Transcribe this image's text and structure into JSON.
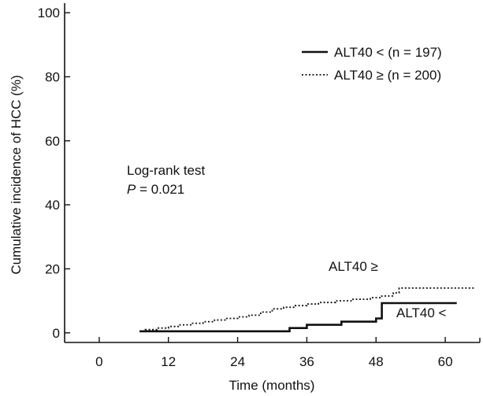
{
  "chart_data": {
    "type": "line",
    "step": true,
    "title": "",
    "xlabel": "Time (months)",
    "ylabel": "Cumulative incidence of HCC (%)",
    "xlim": [
      -6,
      66
    ],
    "ylim": [
      -3,
      103
    ],
    "xticks": [
      0,
      12,
      24,
      36,
      48,
      60
    ],
    "yticks": [
      0,
      20,
      40,
      60,
      80,
      100
    ],
    "x_tick_labels": [
      "0",
      "12",
      "24",
      "36",
      "48",
      "60"
    ],
    "y_tick_labels": [
      "0",
      "20",
      "40",
      "60",
      "80",
      "100"
    ],
    "grid": false,
    "legend_position": "top-right",
    "series": [
      {
        "name": "ALT40 < (n = 197)",
        "end_label": "ALT40 <",
        "style": "solid",
        "x": [
          7,
          32,
          33,
          35,
          36,
          41,
          42,
          47,
          48,
          49,
          62
        ],
        "y": [
          0.5,
          0.5,
          1.5,
          1.5,
          2.5,
          2.5,
          3.5,
          3.5,
          4.5,
          9.3,
          9.3
        ]
      },
      {
        "name": "ALT40 ≥ (n = 200)",
        "end_label": "ALT40 ≥",
        "style": "dotted",
        "x": [
          7,
          8,
          10,
          12,
          14,
          16,
          18,
          20,
          22,
          24,
          26,
          28,
          30,
          32,
          34,
          36,
          38,
          41,
          44,
          47,
          49,
          51,
          52,
          53,
          65
        ],
        "y": [
          0.5,
          1,
          1.5,
          2,
          2.5,
          3,
          3.5,
          4,
          4.5,
          5,
          5.5,
          6.5,
          7.5,
          8,
          8.5,
          9,
          9.5,
          10,
          10.5,
          11,
          11.5,
          12.5,
          14,
          14,
          14
        ]
      }
    ],
    "annotations": [
      {
        "text": "Log-rank test"
      },
      {
        "text_italic": "P",
        "text": " = 0.021"
      }
    ]
  }
}
